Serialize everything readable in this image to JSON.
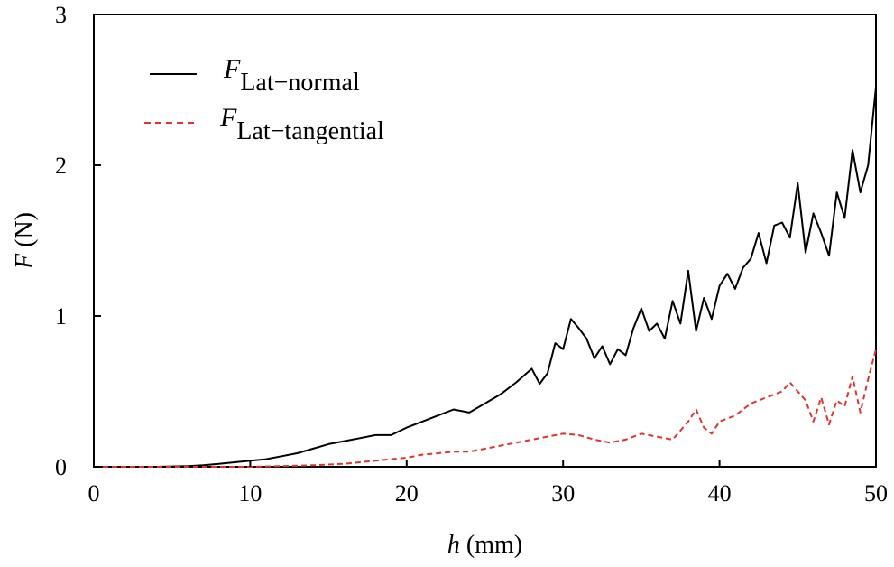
{
  "chart_data": {
    "type": "line",
    "title": "",
    "xlabel": {
      "var": "h",
      "unit": " (mm)"
    },
    "ylabel": {
      "var": "F",
      "unit": " (N)"
    },
    "xlim": [
      0,
      50
    ],
    "ylim": [
      0,
      3
    ],
    "xticks": [
      0,
      10,
      20,
      30,
      40,
      50
    ],
    "yticks": [
      0,
      1,
      2,
      3
    ],
    "legend": "top-left",
    "series": [
      {
        "name": "F_Lat-normal",
        "label_main": "F",
        "label_sub": "Lat−normal",
        "color": "#000000",
        "style": "solid",
        "x": [
          0,
          4,
          6,
          7,
          8,
          9,
          10,
          11,
          12,
          13,
          14,
          15,
          16,
          17,
          18,
          19,
          20,
          21,
          22,
          23,
          24,
          25,
          26,
          27,
          28,
          28.5,
          29,
          29.5,
          30,
          30.5,
          31,
          31.5,
          32,
          32.5,
          33,
          33.5,
          34,
          34.5,
          35,
          35.5,
          36,
          36.5,
          37,
          37.5,
          38,
          38.5,
          39,
          39.5,
          40,
          40.5,
          41,
          41.5,
          42,
          42.5,
          43,
          43.5,
          44,
          44.5,
          45,
          45.5,
          46,
          46.5,
          47,
          47.5,
          48,
          48.5,
          49,
          49.5,
          50
        ],
        "y": [
          0,
          0,
          0.005,
          0.01,
          0.02,
          0.03,
          0.04,
          0.05,
          0.07,
          0.09,
          0.12,
          0.15,
          0.17,
          0.19,
          0.21,
          0.21,
          0.26,
          0.3,
          0.34,
          0.38,
          0.36,
          0.42,
          0.48,
          0.56,
          0.65,
          0.55,
          0.62,
          0.82,
          0.78,
          0.98,
          0.92,
          0.85,
          0.72,
          0.8,
          0.68,
          0.78,
          0.74,
          0.92,
          1.05,
          0.9,
          0.95,
          0.85,
          1.1,
          0.95,
          1.3,
          0.9,
          1.12,
          0.98,
          1.2,
          1.28,
          1.18,
          1.32,
          1.38,
          1.55,
          1.35,
          1.6,
          1.62,
          1.52,
          1.88,
          1.42,
          1.68,
          1.55,
          1.4,
          1.82,
          1.65,
          2.1,
          1.82,
          2.0,
          2.52
        ]
      },
      {
        "name": "F_Lat-tangential",
        "label_main": "F",
        "label_sub": "Lat−tangential",
        "color": "#e8312f",
        "style": "dashed",
        "x": [
          0,
          6,
          10,
          12,
          14,
          16,
          17,
          18,
          19,
          20,
          21,
          22,
          23,
          24,
          25,
          26,
          27,
          28,
          29,
          30,
          31,
          32,
          33,
          34,
          35,
          36,
          37,
          38,
          38.5,
          39,
          39.5,
          40,
          41,
          42,
          43,
          44,
          44.5,
          45,
          45.5,
          46,
          46.5,
          47,
          47.5,
          48,
          48.5,
          49,
          49.5,
          50
        ],
        "y": [
          0,
          0,
          0,
          0.005,
          0.01,
          0.02,
          0.03,
          0.04,
          0.05,
          0.06,
          0.08,
          0.09,
          0.1,
          0.1,
          0.12,
          0.14,
          0.16,
          0.18,
          0.2,
          0.22,
          0.21,
          0.18,
          0.16,
          0.18,
          0.22,
          0.2,
          0.18,
          0.3,
          0.38,
          0.26,
          0.22,
          0.3,
          0.34,
          0.42,
          0.46,
          0.5,
          0.56,
          0.5,
          0.44,
          0.3,
          0.46,
          0.28,
          0.44,
          0.4,
          0.6,
          0.36,
          0.58,
          0.78
        ]
      }
    ]
  }
}
